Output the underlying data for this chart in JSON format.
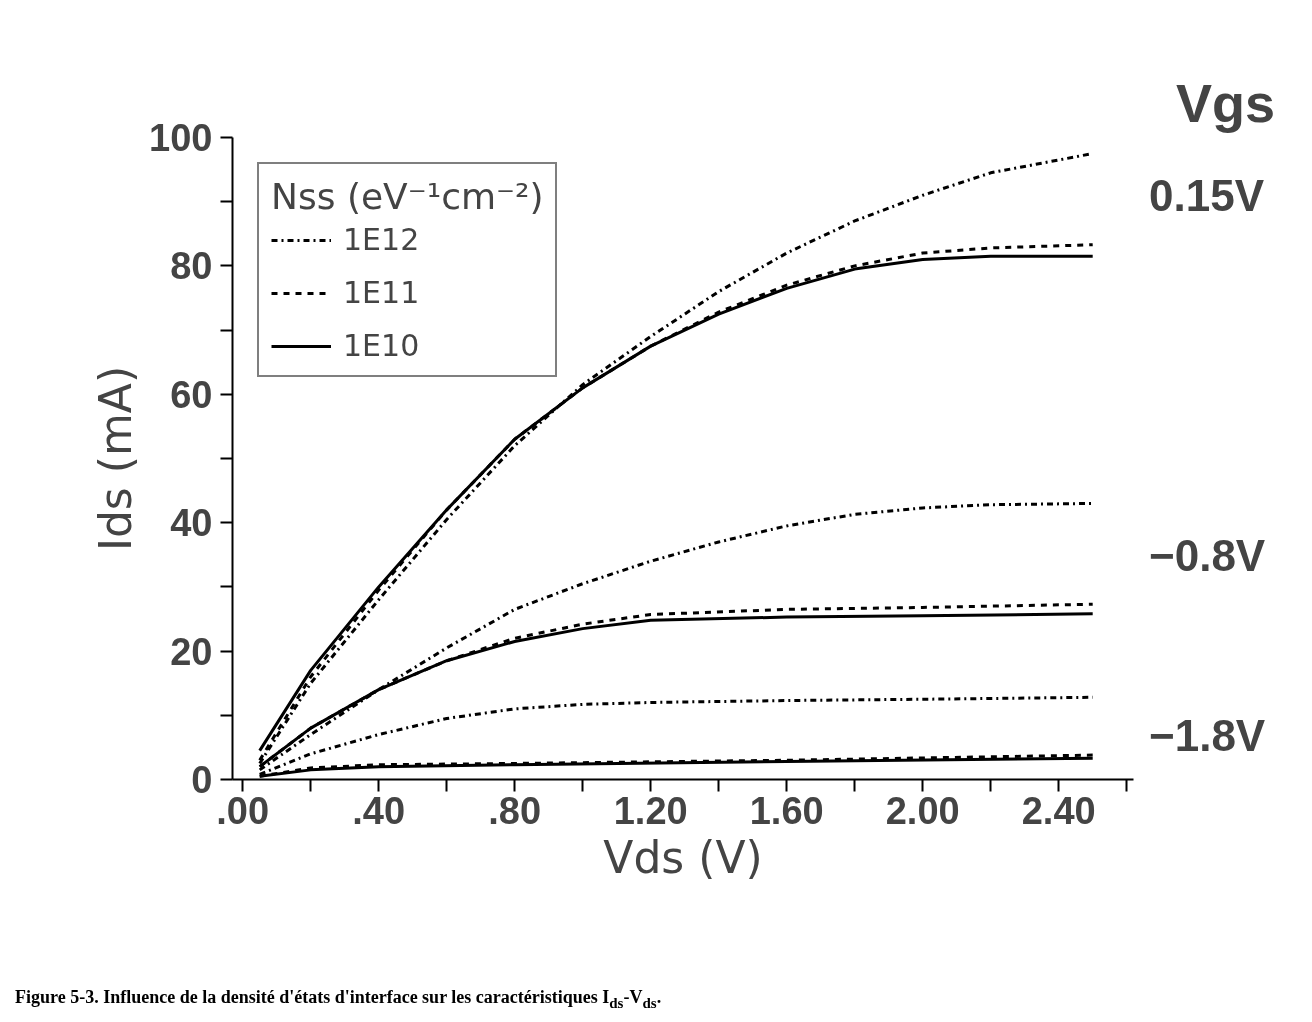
{
  "chart_data": {
    "type": "line",
    "xlabel": "Vds (V)",
    "ylabel": "Ids (mA)",
    "legend_title": "Nss (eV⁻¹cm⁻²)",
    "xlim": [
      -0.03,
      2.62
    ],
    "xticks": [
      {
        "value": 0,
        "label": ".00"
      },
      {
        "value": 0.2,
        "label": null
      },
      {
        "value": 0.4,
        "label": ".40"
      },
      {
        "value": 0.6,
        "label": null
      },
      {
        "value": 0.8,
        "label": ".80"
      },
      {
        "value": 1.0,
        "label": null
      },
      {
        "value": 1.2,
        "label": "1.20"
      },
      {
        "value": 1.4,
        "label": null
      },
      {
        "value": 1.6,
        "label": "1.60"
      },
      {
        "value": 1.8,
        "label": null
      },
      {
        "value": 2.0,
        "label": "2.00"
      },
      {
        "value": 2.2,
        "label": null
      },
      {
        "value": 2.4,
        "label": "2.40"
      },
      {
        "value": 2.6,
        "label": null
      }
    ],
    "ylim": [
      0,
      100
    ],
    "yticks": [
      0,
      {
        "value": 10,
        "label": null
      },
      20,
      {
        "value": 30,
        "label": null
      },
      40,
      {
        "value": 50,
        "label": null
      },
      60,
      {
        "value": 70,
        "label": null
      },
      80,
      {
        "value": 90,
        "label": null
      },
      100
    ],
    "grid": false,
    "legend": "top left",
    "marker": "none",
    "series": [
      {
        "name": "1E12",
        "color": "#000000",
        "line_style": "dashdot",
        "x": [
          0.05,
          0.2,
          0.4,
          0.6,
          0.8,
          1.0,
          1.2,
          1.4,
          1.6,
          1.8,
          2.0,
          2.2,
          2.5
        ],
        "values": [
          2.5,
          15,
          28,
          40.5,
          52,
          61.5,
          69,
          76,
          82,
          87,
          91,
          94.5,
          97.5
        ]
      },
      {
        "name": "1E11",
        "color": "#000000",
        "line_style": "dashed",
        "x": [
          0.05,
          0.2,
          0.4,
          0.6,
          0.8,
          1.0,
          1.2,
          1.4,
          1.6,
          1.8,
          2.0,
          2.2,
          2.5
        ],
        "values": [
          3,
          16,
          29.5,
          42,
          53,
          61,
          67.5,
          72.8,
          77,
          80,
          82,
          82.8,
          83.3
        ]
      },
      {
        "name": "1E10",
        "color": "#000000",
        "line_style": "solid",
        "x": [
          0.05,
          0.2,
          0.4,
          0.6,
          0.8,
          1.0,
          1.2,
          1.4,
          1.6,
          1.8,
          2.0,
          2.2,
          2.5
        ],
        "values": [
          4.5,
          17,
          30,
          42,
          53,
          61,
          67.5,
          72.5,
          76.5,
          79.5,
          81,
          81.5,
          81.5
        ]
      },
      {
        "color": "#000000",
        "line_style": "dashdot",
        "x": [
          0.05,
          0.2,
          0.4,
          0.6,
          0.8,
          1.0,
          1.2,
          1.4,
          1.6,
          1.8,
          2.0,
          2.2,
          2.5
        ],
        "values": [
          1.5,
          7,
          14,
          20.5,
          26.5,
          30.5,
          34,
          37,
          39.5,
          41.3,
          42.3,
          42.8,
          43
        ]
      },
      {
        "color": "#000000",
        "line_style": "dashed",
        "x": [
          0.05,
          0.2,
          0.4,
          0.6,
          0.8,
          1.0,
          1.2,
          1.6,
          2.0,
          2.5
        ],
        "values": [
          2,
          8,
          14,
          18.5,
          22,
          24.2,
          25.7,
          26.5,
          26.8,
          27.3
        ]
      },
      {
        "color": "#000000",
        "line_style": "solid",
        "x": [
          0.05,
          0.2,
          0.4,
          0.6,
          0.8,
          1.0,
          1.2,
          1.6,
          2.0,
          2.5
        ],
        "values": [
          2,
          8,
          14,
          18.5,
          21.5,
          23.5,
          24.8,
          25.3,
          25.5,
          25.8
        ]
      },
      {
        "color": "#000000",
        "line_style": "dashdot",
        "x": [
          0.05,
          0.2,
          0.4,
          0.6,
          0.8,
          1.0,
          1.2,
          1.6,
          2.0,
          2.5
        ],
        "values": [
          0.8,
          4,
          7,
          9.5,
          11,
          11.7,
          12,
          12.3,
          12.5,
          12.8
        ]
      },
      {
        "color": "#000000",
        "line_style": "dashed",
        "x": [
          0.05,
          0.2,
          0.4,
          0.8,
          1.6,
          2.5
        ],
        "values": [
          0.5,
          1.8,
          2.3,
          2.5,
          3,
          3.8
        ]
      },
      {
        "color": "#000000",
        "line_style": "solid",
        "x": [
          0.05,
          0.2,
          0.4,
          0.8,
          1.6,
          2.5
        ],
        "values": [
          0.5,
          1.5,
          2,
          2.3,
          2.8,
          3.3
        ]
      }
    ],
    "annotations": [
      "Vgs",
      "0.15V",
      "−0.8V",
      "−1.8V",
      "Figure 5-3.   Influence de la densité d'états d'interface sur les caractéristiques I$_{ds}$-V$_{ds}$."
    ]
  }
}
